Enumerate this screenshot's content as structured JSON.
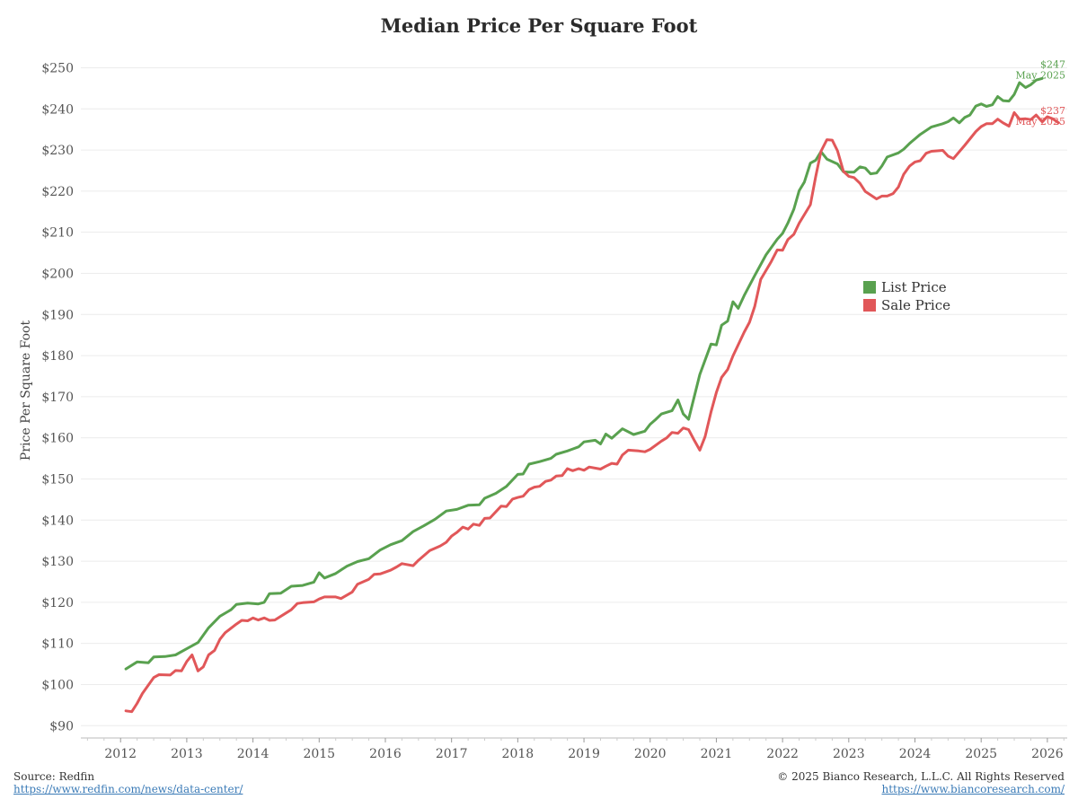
{
  "chart_data": {
    "type": "line",
    "title": "Median Price Per Square Foot",
    "ylabel": "Price Per Square Foot",
    "xlabel": "",
    "xlim": [
      2011.4,
      2026.3
    ],
    "ylim": [
      87,
      256
    ],
    "x_ticks": [
      "2012",
      "2013",
      "2014",
      "2015",
      "2016",
      "2017",
      "2018",
      "2019",
      "2020",
      "2021",
      "2022",
      "2023",
      "2024",
      "2025",
      "2026"
    ],
    "y_ticks": [
      "$90",
      "$100",
      "$110",
      "$120",
      "$130",
      "$140",
      "$150",
      "$160",
      "$170",
      "$180",
      "$190",
      "$200",
      "$210",
      "$220",
      "$230",
      "$240",
      "$250"
    ],
    "grid": "horizontal",
    "legend_position": "right-middle",
    "series": [
      {
        "name": "List Price",
        "color": "#59a14f",
        "end_label": "$247",
        "end_date": "May 2025",
        "points": [
          [
            2012.08,
            103.8
          ],
          [
            2012.25,
            105.5
          ],
          [
            2012.42,
            105.3
          ],
          [
            2012.5,
            106.7
          ],
          [
            2012.67,
            106.8
          ],
          [
            2012.83,
            107.2
          ],
          [
            2013.0,
            108.7
          ],
          [
            2013.17,
            110.2
          ],
          [
            2013.33,
            113.8
          ],
          [
            2013.5,
            116.6
          ],
          [
            2013.67,
            118.2
          ],
          [
            2013.75,
            119.5
          ],
          [
            2013.92,
            119.8
          ],
          [
            2014.08,
            119.6
          ],
          [
            2014.17,
            120.0
          ],
          [
            2014.25,
            122.1
          ],
          [
            2014.42,
            122.2
          ],
          [
            2014.58,
            123.9
          ],
          [
            2014.75,
            124.1
          ],
          [
            2014.92,
            124.9
          ],
          [
            2015.0,
            127.2
          ],
          [
            2015.08,
            125.9
          ],
          [
            2015.25,
            127.0
          ],
          [
            2015.42,
            128.8
          ],
          [
            2015.58,
            129.9
          ],
          [
            2015.75,
            130.6
          ],
          [
            2015.92,
            132.7
          ],
          [
            2016.08,
            134.0
          ],
          [
            2016.25,
            135.0
          ],
          [
            2016.42,
            137.2
          ],
          [
            2016.58,
            138.6
          ],
          [
            2016.75,
            140.2
          ],
          [
            2016.92,
            142.2
          ],
          [
            2017.08,
            142.6
          ],
          [
            2017.25,
            143.6
          ],
          [
            2017.42,
            143.7
          ],
          [
            2017.5,
            145.3
          ],
          [
            2017.67,
            146.5
          ],
          [
            2017.83,
            148.2
          ],
          [
            2018.0,
            151.1
          ],
          [
            2018.08,
            151.2
          ],
          [
            2018.17,
            153.6
          ],
          [
            2018.33,
            154.2
          ],
          [
            2018.5,
            155.0
          ],
          [
            2018.58,
            156.0
          ],
          [
            2018.75,
            156.8
          ],
          [
            2018.92,
            157.8
          ],
          [
            2019.0,
            159.0
          ],
          [
            2019.17,
            159.4
          ],
          [
            2019.25,
            158.5
          ],
          [
            2019.33,
            160.9
          ],
          [
            2019.42,
            159.9
          ],
          [
            2019.58,
            162.2
          ],
          [
            2019.75,
            160.8
          ],
          [
            2019.92,
            161.6
          ],
          [
            2020.0,
            163.3
          ],
          [
            2020.08,
            164.4
          ],
          [
            2020.17,
            165.8
          ],
          [
            2020.33,
            166.6
          ],
          [
            2020.42,
            169.2
          ],
          [
            2020.5,
            165.8
          ],
          [
            2020.58,
            164.5
          ],
          [
            2020.75,
            175.4
          ],
          [
            2020.92,
            182.8
          ],
          [
            2021.0,
            182.6
          ],
          [
            2021.08,
            187.4
          ],
          [
            2021.17,
            188.4
          ],
          [
            2021.25,
            193.1
          ],
          [
            2021.33,
            191.5
          ],
          [
            2021.42,
            194.6
          ],
          [
            2021.58,
            199.5
          ],
          [
            2021.75,
            204.5
          ],
          [
            2021.92,
            208.3
          ],
          [
            2022.0,
            209.7
          ],
          [
            2022.08,
            212.2
          ],
          [
            2022.17,
            215.6
          ],
          [
            2022.25,
            220.1
          ],
          [
            2022.33,
            222.2
          ],
          [
            2022.42,
            226.8
          ],
          [
            2022.5,
            227.5
          ],
          [
            2022.58,
            229.6
          ],
          [
            2022.67,
            227.8
          ],
          [
            2022.83,
            226.6
          ],
          [
            2022.92,
            224.7
          ],
          [
            2023.0,
            224.6
          ],
          [
            2023.08,
            224.6
          ],
          [
            2023.17,
            225.9
          ],
          [
            2023.25,
            225.6
          ],
          [
            2023.33,
            224.2
          ],
          [
            2023.42,
            224.4
          ],
          [
            2023.5,
            226.1
          ],
          [
            2023.58,
            228.3
          ],
          [
            2023.75,
            229.3
          ],
          [
            2023.83,
            230.2
          ],
          [
            2023.92,
            231.6
          ],
          [
            2024.08,
            233.8
          ],
          [
            2024.25,
            235.6
          ],
          [
            2024.42,
            236.4
          ],
          [
            2024.5,
            236.9
          ],
          [
            2024.58,
            237.8
          ],
          [
            2024.67,
            236.6
          ],
          [
            2024.75,
            237.9
          ],
          [
            2024.83,
            238.5
          ],
          [
            2024.92,
            240.7
          ],
          [
            2025.0,
            241.2
          ],
          [
            2025.08,
            240.6
          ],
          [
            2025.17,
            241.0
          ],
          [
            2025.25,
            243.0
          ],
          [
            2025.33,
            242.0
          ],
          [
            2025.42,
            241.9
          ],
          [
            2025.5,
            243.5
          ],
          [
            2025.58,
            246.4
          ],
          [
            2025.67,
            245.2
          ],
          [
            2025.75,
            245.9
          ],
          [
            2025.83,
            247.0
          ],
          [
            2025.92,
            247.4
          ]
        ]
      },
      {
        "name": "Sale Price",
        "color": "#e15759",
        "end_label": "$237",
        "end_date": "May 2025",
        "points": [
          [
            2012.08,
            93.6
          ],
          [
            2012.17,
            93.4
          ],
          [
            2012.25,
            95.4
          ],
          [
            2012.33,
            97.8
          ],
          [
            2012.5,
            101.7
          ],
          [
            2012.58,
            102.4
          ],
          [
            2012.75,
            102.3
          ],
          [
            2012.83,
            103.4
          ],
          [
            2012.92,
            103.3
          ],
          [
            2013.0,
            105.6
          ],
          [
            2013.08,
            107.2
          ],
          [
            2013.17,
            103.3
          ],
          [
            2013.25,
            104.3
          ],
          [
            2013.33,
            107.2
          ],
          [
            2013.42,
            108.3
          ],
          [
            2013.5,
            111.0
          ],
          [
            2013.58,
            112.6
          ],
          [
            2013.75,
            114.7
          ],
          [
            2013.83,
            115.6
          ],
          [
            2013.92,
            115.5
          ],
          [
            2014.0,
            116.2
          ],
          [
            2014.08,
            115.7
          ],
          [
            2014.17,
            116.2
          ],
          [
            2014.25,
            115.6
          ],
          [
            2014.33,
            115.7
          ],
          [
            2014.5,
            117.4
          ],
          [
            2014.58,
            118.2
          ],
          [
            2014.67,
            119.7
          ],
          [
            2014.75,
            119.9
          ],
          [
            2014.92,
            120.1
          ],
          [
            2015.0,
            120.8
          ],
          [
            2015.08,
            121.3
          ],
          [
            2015.25,
            121.3
          ],
          [
            2015.33,
            120.9
          ],
          [
            2015.5,
            122.5
          ],
          [
            2015.58,
            124.4
          ],
          [
            2015.75,
            125.6
          ],
          [
            2015.83,
            126.8
          ],
          [
            2015.92,
            126.9
          ],
          [
            2016.08,
            127.8
          ],
          [
            2016.17,
            128.6
          ],
          [
            2016.25,
            129.4
          ],
          [
            2016.42,
            128.9
          ],
          [
            2016.5,
            130.2
          ],
          [
            2016.67,
            132.6
          ],
          [
            2016.83,
            133.7
          ],
          [
            2016.92,
            134.6
          ],
          [
            2017.0,
            136.1
          ],
          [
            2017.08,
            137.0
          ],
          [
            2017.17,
            138.3
          ],
          [
            2017.25,
            137.8
          ],
          [
            2017.33,
            139.0
          ],
          [
            2017.42,
            138.7
          ],
          [
            2017.5,
            140.4
          ],
          [
            2017.58,
            140.5
          ],
          [
            2017.75,
            143.4
          ],
          [
            2017.83,
            143.3
          ],
          [
            2017.92,
            145.1
          ],
          [
            2018.0,
            145.5
          ],
          [
            2018.08,
            145.8
          ],
          [
            2018.17,
            147.4
          ],
          [
            2018.25,
            148.0
          ],
          [
            2018.33,
            148.2
          ],
          [
            2018.42,
            149.4
          ],
          [
            2018.5,
            149.7
          ],
          [
            2018.58,
            150.7
          ],
          [
            2018.67,
            150.8
          ],
          [
            2018.75,
            152.5
          ],
          [
            2018.83,
            152.0
          ],
          [
            2018.92,
            152.5
          ],
          [
            2019.0,
            152.1
          ],
          [
            2019.08,
            152.9
          ],
          [
            2019.25,
            152.4
          ],
          [
            2019.33,
            153.1
          ],
          [
            2019.42,
            153.8
          ],
          [
            2019.5,
            153.6
          ],
          [
            2019.58,
            155.8
          ],
          [
            2019.67,
            157.0
          ],
          [
            2019.83,
            156.8
          ],
          [
            2019.92,
            156.6
          ],
          [
            2020.0,
            157.2
          ],
          [
            2020.17,
            159.2
          ],
          [
            2020.25,
            160.0
          ],
          [
            2020.33,
            161.3
          ],
          [
            2020.42,
            161.1
          ],
          [
            2020.5,
            162.4
          ],
          [
            2020.58,
            162.0
          ],
          [
            2020.67,
            159.3
          ],
          [
            2020.75,
            157.0
          ],
          [
            2020.83,
            160.3
          ],
          [
            2020.92,
            166.3
          ],
          [
            2021.0,
            171.0
          ],
          [
            2021.08,
            174.7
          ],
          [
            2021.17,
            176.6
          ],
          [
            2021.25,
            179.9
          ],
          [
            2021.42,
            185.7
          ],
          [
            2021.5,
            188.1
          ],
          [
            2021.58,
            192.0
          ],
          [
            2021.67,
            198.5
          ],
          [
            2021.83,
            202.9
          ],
          [
            2021.92,
            205.7
          ],
          [
            2022.0,
            205.6
          ],
          [
            2022.08,
            208.2
          ],
          [
            2022.17,
            209.5
          ],
          [
            2022.25,
            212.2
          ],
          [
            2022.42,
            216.7
          ],
          [
            2022.5,
            223.5
          ],
          [
            2022.58,
            229.7
          ],
          [
            2022.67,
            232.5
          ],
          [
            2022.75,
            232.4
          ],
          [
            2022.83,
            229.8
          ],
          [
            2022.92,
            224.8
          ],
          [
            2023.0,
            223.6
          ],
          [
            2023.08,
            223.3
          ],
          [
            2023.17,
            221.9
          ],
          [
            2023.25,
            219.9
          ],
          [
            2023.42,
            218.1
          ],
          [
            2023.5,
            218.8
          ],
          [
            2023.58,
            218.8
          ],
          [
            2023.67,
            219.4
          ],
          [
            2023.75,
            221.0
          ],
          [
            2023.83,
            224.1
          ],
          [
            2023.92,
            226.1
          ],
          [
            2024.0,
            227.1
          ],
          [
            2024.08,
            227.4
          ],
          [
            2024.17,
            229.2
          ],
          [
            2024.25,
            229.7
          ],
          [
            2024.42,
            229.9
          ],
          [
            2024.5,
            228.5
          ],
          [
            2024.58,
            227.9
          ],
          [
            2024.75,
            231.1
          ],
          [
            2024.92,
            234.5
          ],
          [
            2025.0,
            235.7
          ],
          [
            2025.08,
            236.4
          ],
          [
            2025.17,
            236.4
          ],
          [
            2025.25,
            237.5
          ],
          [
            2025.33,
            236.6
          ],
          [
            2025.42,
            235.8
          ],
          [
            2025.5,
            239.1
          ],
          [
            2025.58,
            237.5
          ],
          [
            2025.67,
            237.6
          ],
          [
            2025.75,
            237.4
          ],
          [
            2025.83,
            238.5
          ],
          [
            2025.92,
            236.9
          ],
          [
            2026.0,
            238.1
          ],
          [
            2026.08,
            237.6
          ],
          [
            2026.17,
            236.6
          ]
        ]
      }
    ]
  },
  "footer": {
    "source": "Source: Redfin",
    "source_url": "https://www.redfin.com/news/data-center/",
    "copyright": "© 2025 Bianco Research, L.L.C. All Rights Reserved",
    "site_url": "https://www.biancoresearch.com/"
  }
}
